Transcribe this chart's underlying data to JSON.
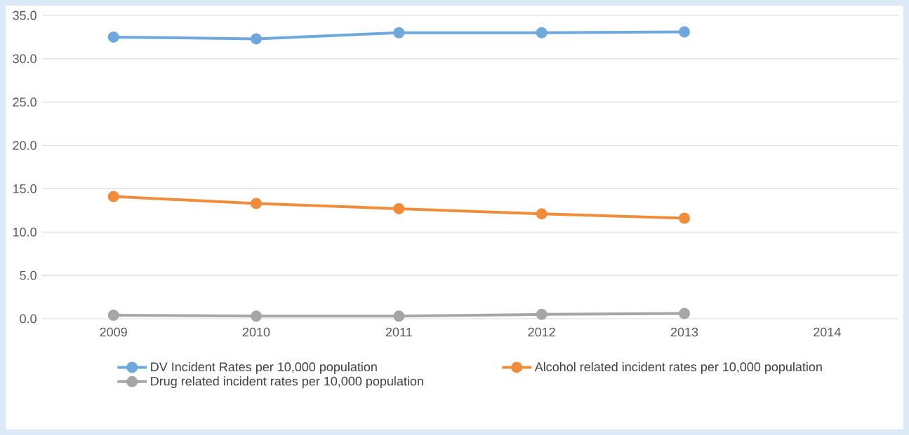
{
  "chart_data": {
    "type": "line",
    "categories": [
      "2009",
      "2010",
      "2011",
      "2012",
      "2013",
      "2014"
    ],
    "series": [
      {
        "name": "DV Incident Rates per 10,000 population",
        "color": "#6fa8dc",
        "values": [
          32.5,
          32.3,
          33.0,
          33.0,
          33.1,
          null
        ]
      },
      {
        "name": "Alcohol related incident rates per 10,000 population",
        "color": "#f08c3a",
        "values": [
          14.1,
          13.3,
          12.7,
          12.1,
          11.6,
          null
        ]
      },
      {
        "name": "Drug related incident rates per 10,000 population",
        "color": "#a6a6a6",
        "values": [
          0.4,
          0.3,
          0.3,
          0.5,
          0.6,
          null
        ]
      }
    ],
    "ylim": [
      0,
      35
    ],
    "yticks": [
      {
        "value": 0,
        "label": "0.0"
      },
      {
        "value": 5,
        "label": "5.0"
      },
      {
        "value": 10,
        "label": "10.0"
      },
      {
        "value": 15,
        "label": "15.0"
      },
      {
        "value": 20,
        "label": "20.0"
      },
      {
        "value": 25,
        "label": "25.0"
      },
      {
        "value": 30,
        "label": "30.0"
      },
      {
        "value": 35,
        "label": "35.0"
      }
    ],
    "grid": "y",
    "legend": "bottom",
    "marker": "circle",
    "line_style": "solid"
  }
}
